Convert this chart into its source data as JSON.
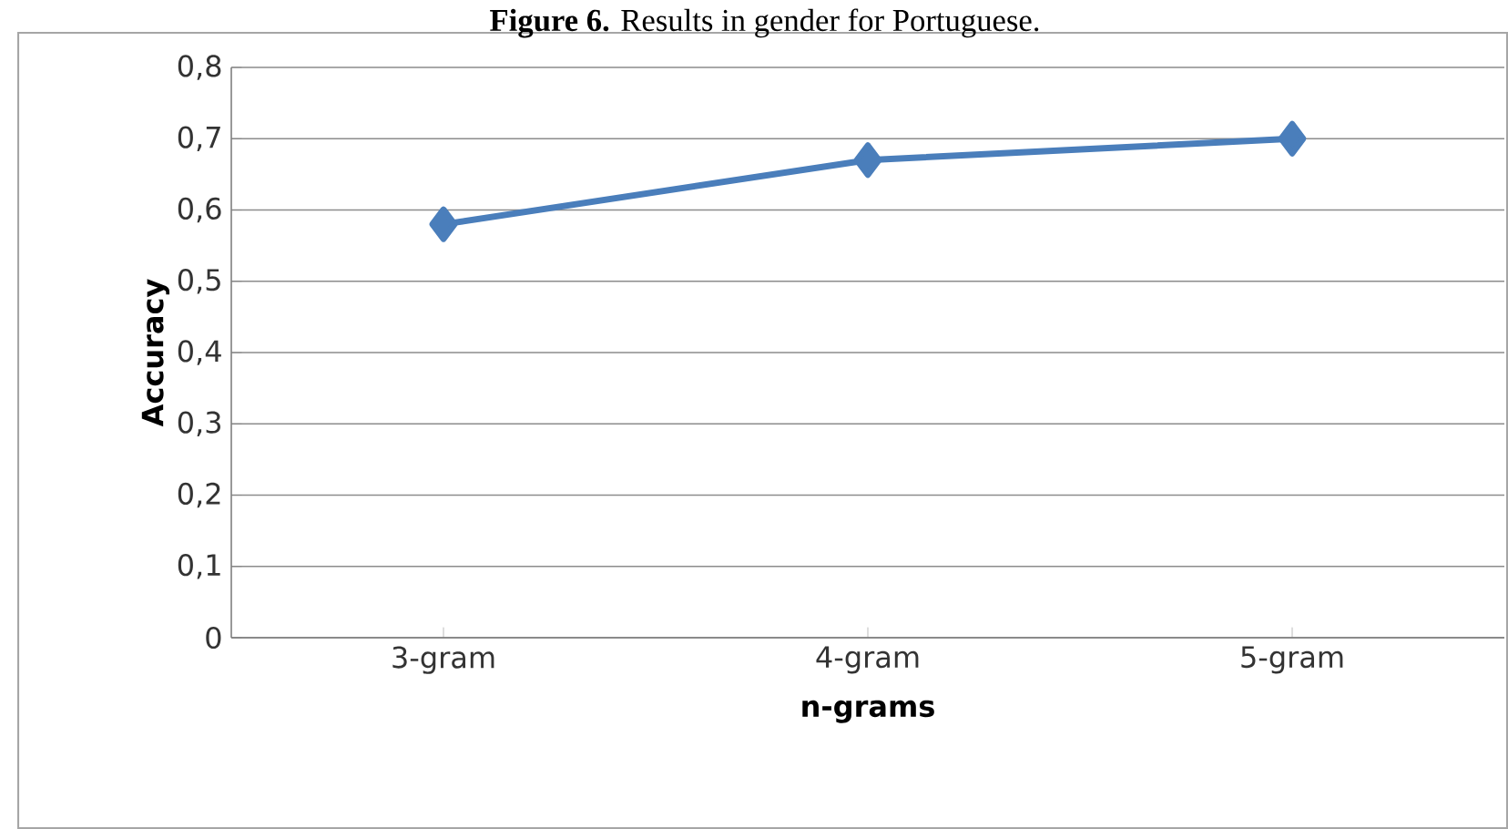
{
  "chart_data": {
    "type": "line",
    "title": "**Figure 6.** Results in gender for Portuguese.",
    "xlabel": "n-grams",
    "ylabel": "Accuracy",
    "categories": [
      "3-gram",
      "4-gram",
      "5-gram"
    ],
    "series": [
      {
        "color": "#4a7ebb",
        "values": [
          0.58,
          0.67,
          0.7
        ]
      }
    ],
    "ylim": [
      0,
      0.8
    ],
    "yticks": [
      {
        "value": 0,
        "label": "0"
      },
      {
        "value": 0.1,
        "label": "0,1"
      },
      {
        "value": 0.2,
        "label": "0,2"
      },
      {
        "value": 0.3,
        "label": "0,3"
      },
      {
        "value": 0.4,
        "label": "0,4"
      },
      {
        "value": 0.5,
        "label": "0,5"
      },
      {
        "value": 0.6,
        "label": "0,6"
      },
      {
        "value": 0.7,
        "label": "0,7"
      },
      {
        "value": 0.8,
        "label": "0,8"
      }
    ],
    "grid": "y",
    "marker": "diamond",
    "line_style": "solid"
  }
}
